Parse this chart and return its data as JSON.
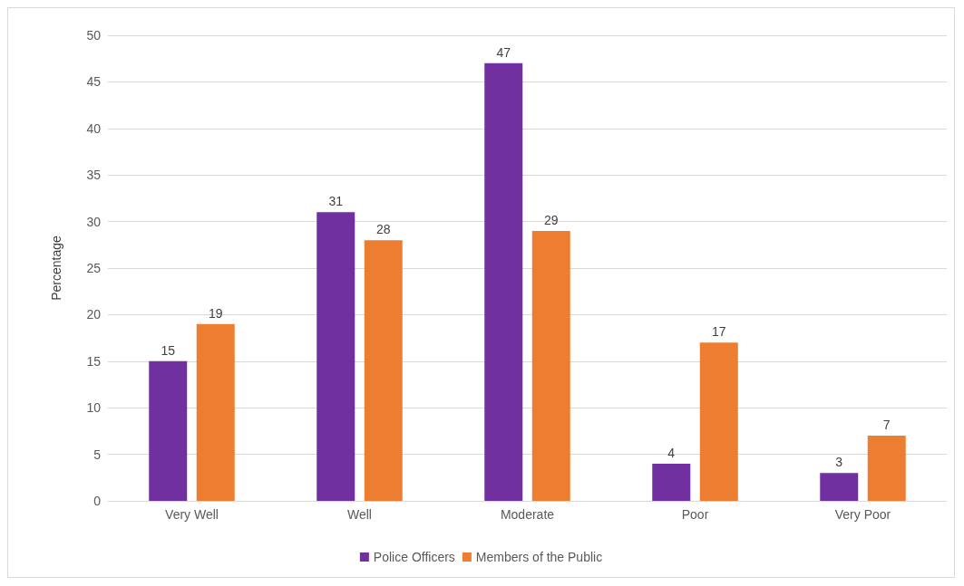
{
  "chart_data": {
    "type": "bar",
    "ylabel": "Percentage",
    "categories": [
      "Very Well",
      "Well",
      "Moderate",
      "Poor",
      "Very Poor"
    ],
    "series": [
      {
        "name": "Police Officers",
        "color": "#7030a0",
        "values": [
          15,
          31,
          47,
          4,
          3
        ]
      },
      {
        "name": "Members of the Public",
        "color": "#ed7d31",
        "values": [
          19,
          28,
          29,
          17,
          7
        ]
      }
    ],
    "ylim": [
      0,
      50
    ],
    "yticks": [
      0,
      5,
      10,
      15,
      20,
      25,
      30,
      35,
      40,
      45,
      50
    ],
    "grid": "y",
    "legend": "bottom",
    "data_labels": true
  }
}
